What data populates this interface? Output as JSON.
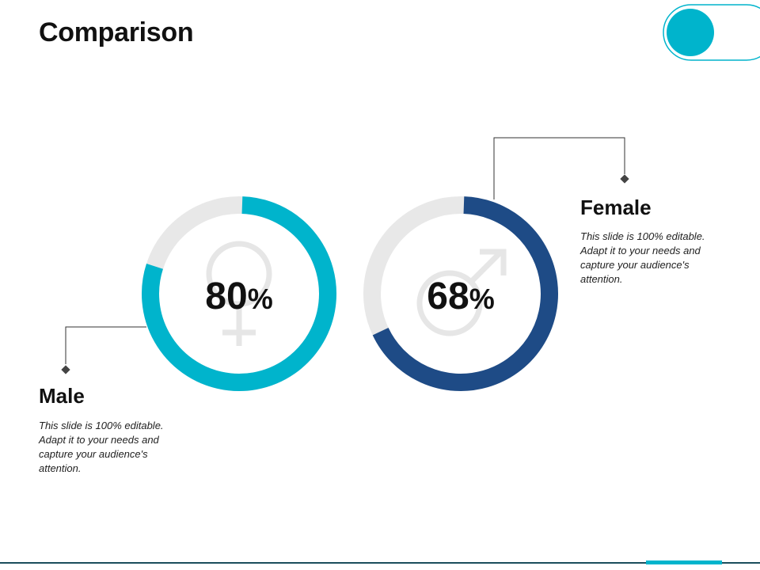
{
  "slide": {
    "title": "Comparison"
  },
  "colors": {
    "male_accent": "#00b4cc",
    "female_accent": "#1e4b86",
    "track": "#e8e8e8",
    "connector": "#333333",
    "footer_line": "#1b4d5c"
  },
  "icons": [
    "female-symbol-icon",
    "male-symbol-icon"
  ],
  "chart_data": {
    "type": "pie",
    "charts": [
      {
        "value": 80,
        "value_label": "80%",
        "color": "#00b4cc",
        "icon": "female-symbol-icon"
      },
      {
        "value": 68,
        "value_label": "68%",
        "color": "#1e4b86",
        "icon": "male-symbol-icon"
      }
    ]
  },
  "male": {
    "heading": "Male",
    "description": "This slide is 100% editable. Adapt it to your needs and capture your audience's attention."
  },
  "female": {
    "heading": "Female",
    "description": "This slide is 100% editable. Adapt it to your needs and capture your audience's attention."
  }
}
